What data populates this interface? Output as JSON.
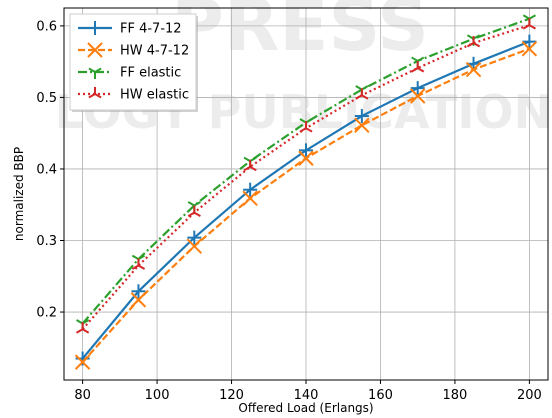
{
  "watermark": {
    "line1": "PRESS",
    "line2": "LOGY PUBLICATIONS"
  },
  "chart_data": {
    "type": "line",
    "title": "",
    "xlabel": "Offered Load (Erlangs)",
    "ylabel": "normalized BBP",
    "xlim": [
      75,
      205
    ],
    "ylim": [
      0.105,
      0.625
    ],
    "xticks": [
      80,
      100,
      120,
      140,
      160,
      180,
      200
    ],
    "yticks": [
      0.2,
      0.3,
      0.4,
      0.5,
      0.6
    ],
    "grid": true,
    "legend_position": "top-left",
    "x": [
      80,
      95,
      110,
      125,
      140,
      155,
      170,
      185,
      200
    ],
    "series": [
      {
        "name": "FF 4-7-12",
        "color": "#1f77b4",
        "dash": "solid",
        "marker": "plus",
        "values": [
          0.135,
          0.229,
          0.304,
          0.371,
          0.426,
          0.474,
          0.513,
          0.547,
          0.578
        ]
      },
      {
        "name": "HW 4-7-12",
        "color": "#ff7f0e",
        "dash": "dashed",
        "marker": "x",
        "values": [
          0.13,
          0.217,
          0.292,
          0.359,
          0.415,
          0.461,
          0.502,
          0.539,
          0.568
        ]
      },
      {
        "name": "FF elastic",
        "color": "#2ca02c",
        "dash": "dashdot",
        "marker": "tri_down",
        "values": [
          0.184,
          0.274,
          0.349,
          0.411,
          0.465,
          0.511,
          0.551,
          0.582,
          0.61
        ]
      },
      {
        "name": "HW elastic",
        "color": "#d62728",
        "dash": "dotted",
        "marker": "tri_up",
        "values": [
          0.176,
          0.265,
          0.339,
          0.403,
          0.457,
          0.503,
          0.541,
          0.576,
          0.601
        ]
      }
    ]
  }
}
